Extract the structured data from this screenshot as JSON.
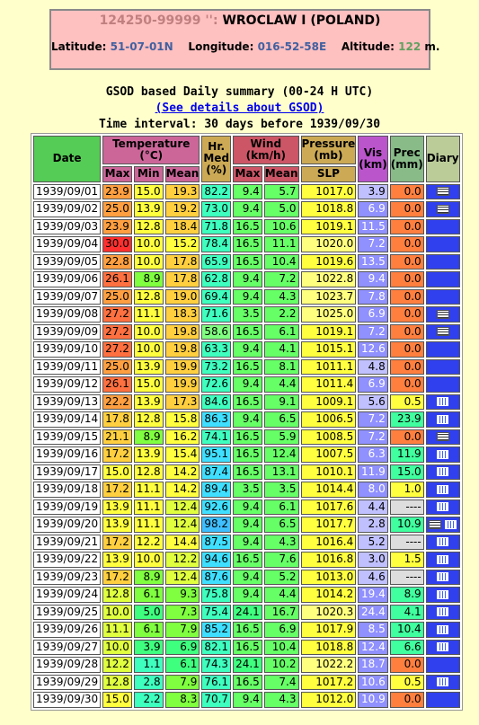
{
  "station": {
    "id": "124250-99999 '':",
    "name": "WROCLAW I (POLAND)",
    "lat_label": "Latitude:",
    "lat": "51-07-01N",
    "lon_label": "Longitude:",
    "lon": "016-52-58E",
    "alt_label": "Altitude:",
    "alt": "122",
    "alt_unit": "m."
  },
  "caption": {
    "line1": "GSOD based Daily summary (00-24 H UTC)",
    "link": "(See details about GSOD)",
    "line3": "Time interval: 30 days before 1939/09/30"
  },
  "headers": {
    "date": "Date",
    "temp": "Temperature (°C)",
    "hr": "Hr. Med (%)",
    "wind": "Wind (km/h)",
    "pres": "Pressure (mb)",
    "vis": "Vis (km)",
    "prec": "Prec (mm)",
    "diary": "Diary",
    "max": "Max",
    "min": "Min",
    "mean": "Mean",
    "wmax": "Max",
    "wmean": "Mean",
    "slp": "SLP"
  },
  "rows": [
    [
      "1939/09/01",
      "23.9",
      "15.0",
      "19.3",
      "82.2",
      "9.4",
      "5.7",
      "1017.0",
      "3.9",
      "0.0",
      "menu"
    ],
    [
      "1939/09/02",
      "25.0",
      "13.9",
      "19.2",
      "73.0",
      "9.4",
      "5.0",
      "1018.8",
      "6.9",
      "0.0",
      "menu"
    ],
    [
      "1939/09/03",
      "23.9",
      "12.8",
      "18.4",
      "71.8",
      "16.5",
      "10.6",
      "1019.1",
      "11.5",
      "0.0",
      ""
    ],
    [
      "1939/09/04",
      "30.0",
      "10.0",
      "15.2",
      "78.4",
      "16.5",
      "11.1",
      "1020.0",
      "7.2",
      "0.0",
      ""
    ],
    [
      "1939/09/05",
      "22.8",
      "10.0",
      "17.8",
      "65.9",
      "16.5",
      "10.4",
      "1019.6",
      "13.5",
      "0.0",
      ""
    ],
    [
      "1939/09/06",
      "26.1",
      "8.9",
      "17.8",
      "62.8",
      "9.4",
      "7.2",
      "1022.8",
      "9.4",
      "0.0",
      ""
    ],
    [
      "1939/09/07",
      "25.0",
      "12.8",
      "19.0",
      "69.4",
      "9.4",
      "4.3",
      "1023.7",
      "7.8",
      "0.0",
      ""
    ],
    [
      "1939/09/08",
      "27.2",
      "11.1",
      "18.3",
      "71.6",
      "3.5",
      "2.2",
      "1025.0",
      "6.9",
      "0.0",
      "menu"
    ],
    [
      "1939/09/09",
      "27.2",
      "10.0",
      "19.8",
      "58.6",
      "16.5",
      "6.1",
      "1019.1",
      "7.2",
      "0.0",
      "menu"
    ],
    [
      "1939/09/10",
      "27.2",
      "10.0",
      "19.8",
      "63.3",
      "9.4",
      "4.1",
      "1015.1",
      "12.6",
      "0.0",
      ""
    ],
    [
      "1939/09/11",
      "25.0",
      "13.9",
      "19.9",
      "73.2",
      "16.5",
      "8.1",
      "1011.1",
      "4.8",
      "0.0",
      ""
    ],
    [
      "1939/09/12",
      "26.1",
      "15.0",
      "19.9",
      "72.6",
      "9.4",
      "4.4",
      "1011.4",
      "6.9",
      "0.0",
      ""
    ],
    [
      "1939/09/13",
      "22.2",
      "13.9",
      "17.3",
      "84.6",
      "16.5",
      "9.1",
      "1009.1",
      "5.6",
      "0.5",
      "rain"
    ],
    [
      "1939/09/14",
      "17.8",
      "12.8",
      "15.8",
      "86.3",
      "9.4",
      "6.5",
      "1006.5",
      "7.2",
      "23.9",
      "rain"
    ],
    [
      "1939/09/15",
      "21.1",
      "8.9",
      "16.2",
      "74.1",
      "16.5",
      "5.9",
      "1008.5",
      "7.2",
      "0.0",
      "menu"
    ],
    [
      "1939/09/16",
      "17.2",
      "13.9",
      "15.4",
      "95.1",
      "16.5",
      "12.4",
      "1007.5",
      "6.3",
      "11.9",
      "rain"
    ],
    [
      "1939/09/17",
      "15.0",
      "12.8",
      "14.2",
      "87.4",
      "16.5",
      "13.1",
      "1010.1",
      "11.9",
      "15.0",
      "rain"
    ],
    [
      "1939/09/18",
      "17.2",
      "11.1",
      "14.2",
      "89.4",
      "3.5",
      "3.5",
      "1014.4",
      "8.0",
      "1.0",
      "rain"
    ],
    [
      "1939/09/19",
      "13.9",
      "11.1",
      "12.4",
      "92.6",
      "9.4",
      "6.1",
      "1017.6",
      "4.4",
      "----",
      "rain"
    ],
    [
      "1939/09/20",
      "13.9",
      "11.1",
      "12.4",
      "98.2",
      "9.4",
      "6.5",
      "1017.7",
      "2.8",
      "10.9",
      "menu-rain"
    ],
    [
      "1939/09/21",
      "17.2",
      "12.2",
      "14.4",
      "87.5",
      "9.4",
      "4.3",
      "1016.4",
      "5.2",
      "----",
      "rain"
    ],
    [
      "1939/09/22",
      "13.9",
      "10.0",
      "12.2",
      "94.6",
      "16.5",
      "7.6",
      "1016.8",
      "3.0",
      "1.5",
      "rain"
    ],
    [
      "1939/09/23",
      "17.2",
      "8.9",
      "12.4",
      "87.6",
      "9.4",
      "5.2",
      "1013.0",
      "4.6",
      "----",
      "rain"
    ],
    [
      "1939/09/24",
      "12.8",
      "6.1",
      "9.3",
      "75.8",
      "9.4",
      "4.4",
      "1014.2",
      "19.4",
      "8.9",
      "rain"
    ],
    [
      "1939/09/25",
      "10.0",
      "5.0",
      "7.3",
      "75.4",
      "24.1",
      "16.7",
      "1020.3",
      "24.4",
      "4.1",
      "rain"
    ],
    [
      "1939/09/26",
      "11.1",
      "6.1",
      "7.9",
      "85.2",
      "16.5",
      "6.9",
      "1017.9",
      "8.5",
      "10.4",
      "rain"
    ],
    [
      "1939/09/27",
      "10.0",
      "3.9",
      "6.9",
      "82.1",
      "16.5",
      "10.4",
      "1018.8",
      "12.4",
      "6.6",
      "rain"
    ],
    [
      "1939/09/28",
      "12.2",
      "1.1",
      "6.1",
      "74.3",
      "24.1",
      "10.2",
      "1022.2",
      "18.7",
      "0.0",
      ""
    ],
    [
      "1939/09/29",
      "12.8",
      "2.8",
      "7.9",
      "76.1",
      "16.5",
      "7.4",
      "1017.2",
      "10.6",
      "0.5",
      "rain"
    ],
    [
      "1939/09/30",
      "15.0",
      "2.2",
      "8.3",
      "70.7",
      "9.4",
      "4.3",
      "1012.0",
      "10.9",
      "0.0",
      ""
    ]
  ],
  "colors": {
    "tmax": [
      "#ff7f3f",
      "#ff9f3f",
      "#ffbf3f",
      "#ffdf3f",
      "#dfff3f",
      "#7fff3f",
      "#3fff7f",
      "#ff3f3f"
    ],
    "wind_bg": "#66ff66",
    "pres_bg": "#ffff66",
    "vis_bg": "#8080ff",
    "prec_bg": "#ff7f3f"
  }
}
